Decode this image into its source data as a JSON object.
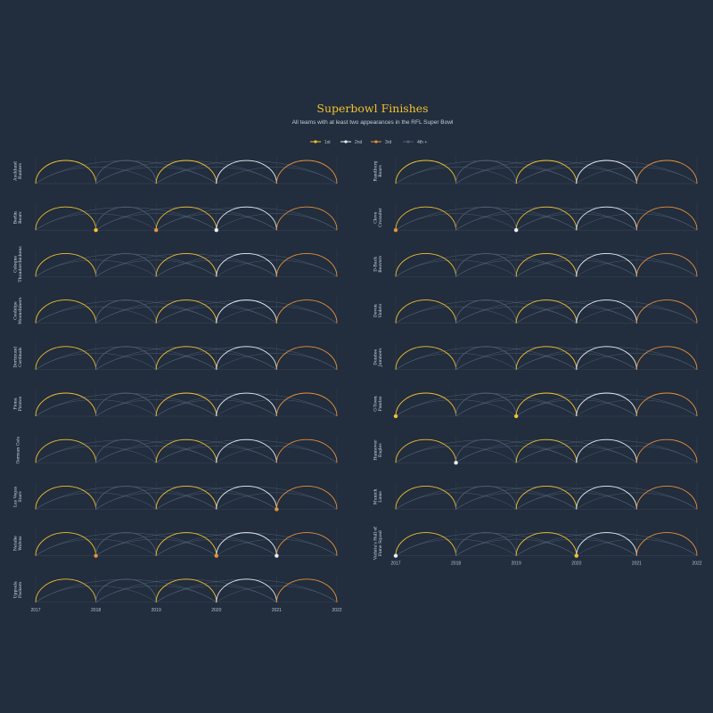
{
  "chart_data": {
    "type": "arc-small-multiples",
    "title": "Superbowl Finishes",
    "subtitle": "All teams with at least two appearances in the RFL Super Bowl",
    "legend": [
      {
        "label": "1st",
        "color": "#f2c230"
      },
      {
        "label": "2nd",
        "color": "#e8eef5"
      },
      {
        "label": "3rd",
        "color": "#e6913b"
      },
      {
        "label": "4th +",
        "color": "#4e5f75"
      }
    ],
    "years": [
      "2017",
      "2018",
      "2019",
      "2020",
      "2021",
      "2022"
    ],
    "teams": [
      {
        "name": "Auckland Raiders",
        "finishes": {}
      },
      {
        "name": "Berlin Bears",
        "finishes": {
          "2018": "1st",
          "2019": "3rd",
          "2020": "2nd"
        }
      },
      {
        "name": "Cologne Thunderchickens",
        "finishes": {}
      },
      {
        "name": "Coolidge Moonshiners",
        "finishes": {}
      },
      {
        "name": "Dortmund Cardinals",
        "finishes": {}
      },
      {
        "name": "Fiona Pirates",
        "finishes": {}
      },
      {
        "name": "German Cats",
        "finishes": {}
      },
      {
        "name": "Las Vegas Stars",
        "finishes": {
          "2021": "3rd"
        }
      },
      {
        "name": "Natalie Wolves",
        "finishes": {
          "2018": "3rd",
          "2020": "3rd",
          "2021": "2nd"
        }
      },
      {
        "name": "Uppsala Packers",
        "finishes": {}
      },
      {
        "name": "Randburg Boars",
        "finishes": {}
      },
      {
        "name": "Cleve Crusader",
        "finishes": {
          "2017": "3rd",
          "2019": "2nd"
        }
      },
      {
        "name": "D-Back Beavers",
        "finishes": {}
      },
      {
        "name": "Devon Violets",
        "finishes": {}
      },
      {
        "name": "Dundee Jammers",
        "finishes": {}
      },
      {
        "name": "G-Town Pandas",
        "finishes": {
          "2017": "1st",
          "2019": "1st"
        }
      },
      {
        "name": "Hannover Eagles",
        "finishes": {
          "2018": "2nd"
        }
      },
      {
        "name": "Munich Lions",
        "finishes": {}
      },
      {
        "name": "Vichita's Hall of Fame Squad",
        "finishes": {
          "2017": "2nd",
          "2020": "1st"
        }
      }
    ]
  }
}
